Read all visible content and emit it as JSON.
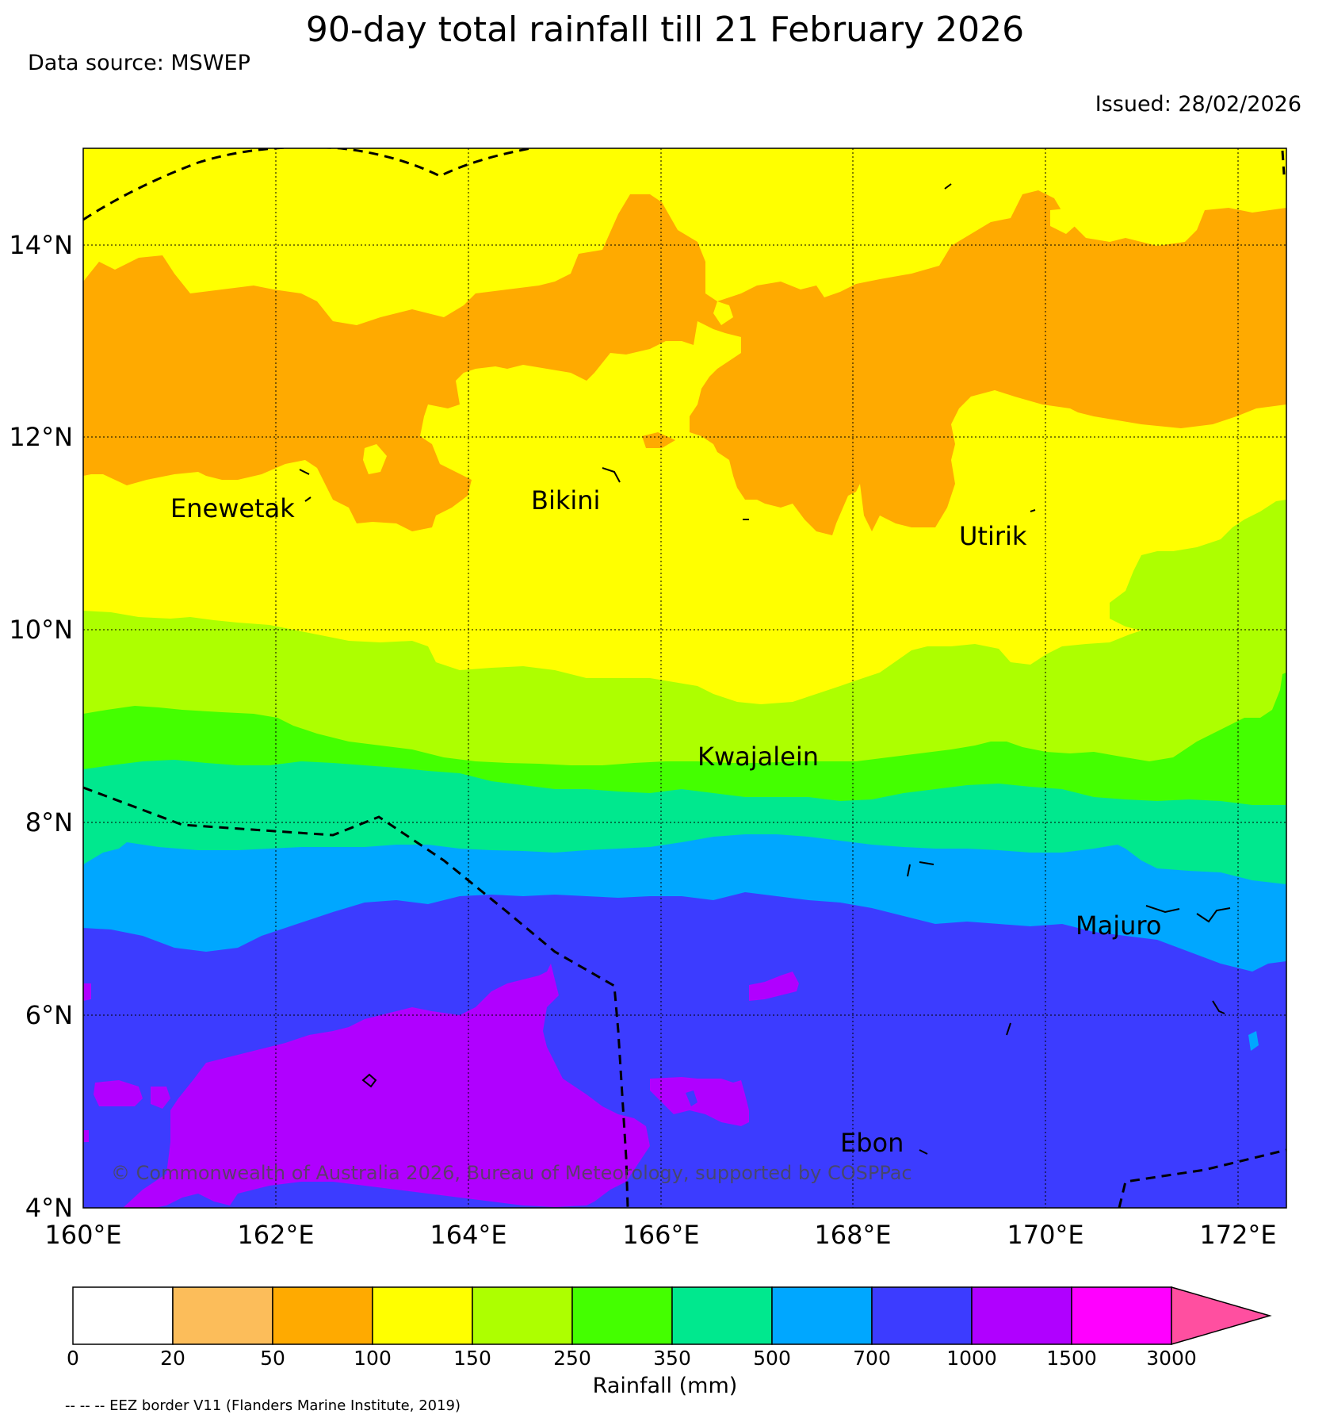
{
  "title": "90-day total rainfall till 21 February 2026",
  "data_source": "Data source: MSWEP",
  "issued": "Issued: 28/02/2026",
  "copyright": "© Commonwealth of Australia 2026, Bureau of Meteorology, supported by COSPPac",
  "map": {
    "lon_range": [
      160,
      172.5
    ],
    "lat_range": [
      4,
      15
    ],
    "lon_ticks": [
      "160°E",
      "162°E",
      "164°E",
      "166°E",
      "168°E",
      "170°E",
      "172°E"
    ],
    "lat_ticks": [
      "14°N",
      "12°N",
      "10°N",
      "8°N",
      "6°N",
      "4°N"
    ],
    "gridlines": true,
    "places": [
      {
        "name": "Enewetak",
        "lon": 162.2,
        "lat": 11.35
      },
      {
        "name": "Bikini",
        "lon": 165.5,
        "lat": 11.6
      },
      {
        "name": "Utirik",
        "lon": 169.8,
        "lat": 11.2
      },
      {
        "name": "Kwajalein",
        "lon": 167.7,
        "lat": 8.72
      },
      {
        "name": "Majuro",
        "lon": 171.1,
        "lat": 7.1
      },
      {
        "name": "Ebon",
        "lon": 168.6,
        "lat": 4.6
      }
    ]
  },
  "colorbar": {
    "label": "Rainfall (mm)",
    "ticks": [
      "0",
      "20",
      "50",
      "100",
      "150",
      "250",
      "350",
      "500",
      "700",
      "1000",
      "1500",
      "3000"
    ],
    "colors": [
      "#ffffff",
      "#fcbd5a",
      "#ffaa00",
      "#ffff00",
      "#adff00",
      "#44ff00",
      "#00e88e",
      "#00a7ff",
      "#3c3cff",
      "#b000ff",
      "#ff00ff",
      "#ff4fa0"
    ]
  },
  "eez_note": "-- -- -- EEZ border V11 (Flanders Marine Institute, 2019)"
}
